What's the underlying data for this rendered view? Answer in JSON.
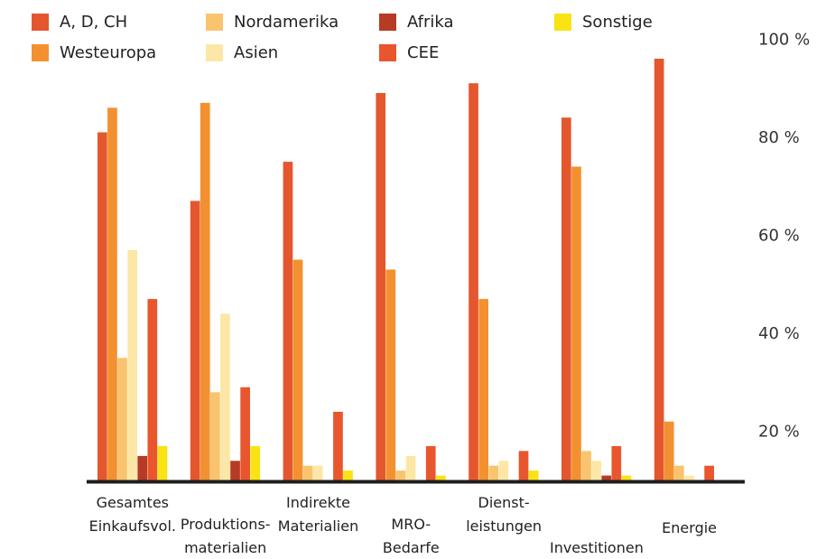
{
  "chart_data": {
    "type": "bar",
    "categories": [
      [
        "Gesamtes",
        "Einkaufsvol."
      ],
      [
        "Produktions-",
        "materialien"
      ],
      [
        "Indirekte",
        "Materialien"
      ],
      [
        "MRO-",
        "Bedarfe"
      ],
      [
        "Dienst-",
        "leistungen"
      ],
      [
        "Investitionen"
      ],
      [
        "Energie"
      ]
    ],
    "series": [
      {
        "name": "A, D, CH",
        "color": "#e4572e",
        "values": [
          81,
          67,
          75,
          89,
          91,
          84,
          96
        ]
      },
      {
        "name": "Westeuropa",
        "color": "#f39130",
        "values": [
          86,
          87,
          55,
          53,
          47,
          74,
          22
        ]
      },
      {
        "name": "Nordamerika",
        "color": "#fac46e",
        "values": [
          35,
          28,
          13,
          12,
          13,
          16,
          13
        ]
      },
      {
        "name": "Asien",
        "color": "#fde7a6",
        "values": [
          57,
          44,
          13,
          15,
          14,
          14,
          11
        ]
      },
      {
        "name": "Afrika",
        "color": "#b73a24",
        "values": [
          15,
          14,
          0,
          0,
          0,
          11,
          0
        ]
      },
      {
        "name": "CEE",
        "color": "#e9562e",
        "values": [
          47,
          29,
          24,
          17,
          16,
          17,
          13
        ]
      },
      {
        "name": "Sonstige",
        "color": "#f9e313",
        "values": [
          17,
          17,
          12,
          11,
          12,
          11,
          10
        ]
      }
    ],
    "yticks": [
      "20 %",
      "40 %",
      "60 %",
      "80 %",
      "100 %"
    ],
    "ylim": [
      10,
      100
    ],
    "axis_color": "#1e1e1e",
    "axis_position": "right",
    "legend_position": "top"
  }
}
